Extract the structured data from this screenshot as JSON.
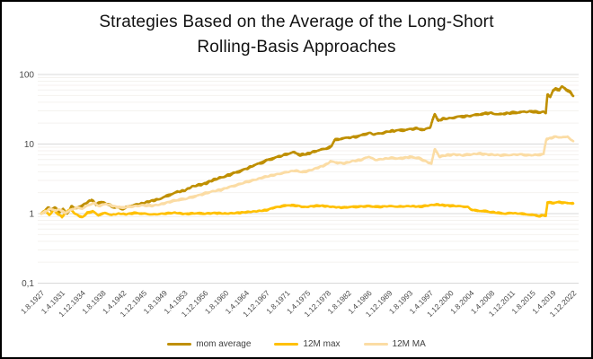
{
  "window": {
    "background": "#FFFFFF",
    "border_color": "#000000"
  },
  "colors": {
    "major_gridline": "#D9D9D9",
    "minor_gridline": "#F4F2EF",
    "axis_text": "#4A4A4A",
    "title_text": "#111111"
  },
  "chart_data": {
    "type": "line",
    "title_lines": [
      "Strategies Based on the Average of the Long-Short",
      "Rolling-Basis Approaches"
    ],
    "y_axis": {
      "scale": "log",
      "range": [
        0.1,
        100
      ],
      "minor_gridlines": true,
      "ticks": [
        {
          "label": "100",
          "value": 100
        },
        {
          "label": "10",
          "value": 10
        },
        {
          "label": "1",
          "value": 1
        },
        {
          "label": "0,1",
          "value": 0.1
        }
      ]
    },
    "x_axis": {
      "range_years": [
        1927.583,
        2022.917
      ],
      "tick_labels": [
        "1.8.1927",
        "1.4.1931",
        "1.12.1934",
        "1.8.1938",
        "1.4.1942",
        "1.12.1945",
        "1.8.1949",
        "1.4.1953",
        "1.12.1956",
        "1.8.1960",
        "1.4.1964",
        "1.12.1967",
        "1.8.1971",
        "1.4.1975",
        "1.12.1978",
        "1.8.1982",
        "1.4.1986",
        "1.12.1989",
        "1.8.1993",
        "1.4.1997",
        "1.12.2000",
        "1.8.2004",
        "1.4.2008",
        "1.12.2011",
        "1.8.2015",
        "1.4.2019",
        "1.12.2022"
      ]
    },
    "legend": {
      "position": "bottom",
      "entries": [
        {
          "label": "mom average",
          "color": "#BF8F00"
        },
        {
          "label": "12M max",
          "color": "#FFC000"
        },
        {
          "label": "12M MA",
          "color": "#FBDCA4"
        }
      ]
    },
    "series": [
      {
        "name": "mom average",
        "color": "#BF8F00",
        "points": [
          [
            1927.58,
            1.0
          ],
          [
            1928.2,
            1.1
          ],
          [
            1928.8,
            1.22
          ],
          [
            1929.4,
            1.12
          ],
          [
            1930.0,
            1.25
          ],
          [
            1930.8,
            1.05
          ],
          [
            1931.5,
            1.15
          ],
          [
            1932.2,
            0.98
          ],
          [
            1933.0,
            1.28
          ],
          [
            1933.8,
            1.18
          ],
          [
            1934.9,
            1.3
          ],
          [
            1935.8,
            1.45
          ],
          [
            1936.6,
            1.58
          ],
          [
            1937.4,
            1.35
          ],
          [
            1938.3,
            1.48
          ],
          [
            1939.2,
            1.4
          ],
          [
            1940.2,
            1.28
          ],
          [
            1941.3,
            1.22
          ],
          [
            1942.3,
            1.18
          ],
          [
            1943.5,
            1.3
          ],
          [
            1944.6,
            1.35
          ],
          [
            1945.9,
            1.42
          ],
          [
            1947.2,
            1.52
          ],
          [
            1948.5,
            1.6
          ],
          [
            1949.6,
            1.72
          ],
          [
            1950.8,
            1.9
          ],
          [
            1952.0,
            2.05
          ],
          [
            1953.3,
            2.15
          ],
          [
            1954.6,
            2.45
          ],
          [
            1956.0,
            2.6
          ],
          [
            1956.9,
            2.7
          ],
          [
            1958.2,
            3.0
          ],
          [
            1959.5,
            3.25
          ],
          [
            1960.6,
            3.45
          ],
          [
            1962.0,
            3.8
          ],
          [
            1963.2,
            4.1
          ],
          [
            1964.3,
            4.4
          ],
          [
            1965.6,
            4.9
          ],
          [
            1966.8,
            5.3
          ],
          [
            1967.9,
            5.8
          ],
          [
            1969.0,
            6.2
          ],
          [
            1970.2,
            6.6
          ],
          [
            1971.6,
            7.2
          ],
          [
            1972.8,
            7.6
          ],
          [
            1974.0,
            7.0
          ],
          [
            1975.3,
            7.2
          ],
          [
            1976.6,
            7.9
          ],
          [
            1977.8,
            8.3
          ],
          [
            1978.9,
            8.8
          ],
          [
            1979.6,
            9.3
          ],
          [
            1980.2,
            11.5
          ],
          [
            1981.4,
            12.0
          ],
          [
            1982.6,
            12.3
          ],
          [
            1984.0,
            12.8
          ],
          [
            1985.2,
            13.5
          ],
          [
            1986.3,
            14.5
          ],
          [
            1987.2,
            13.8
          ],
          [
            1988.4,
            14.2
          ],
          [
            1989.9,
            15.2
          ],
          [
            1991.2,
            15.6
          ],
          [
            1992.4,
            15.9
          ],
          [
            1993.6,
            16.3
          ],
          [
            1995.0,
            16.8
          ],
          [
            1996.2,
            16.0
          ],
          [
            1997.3,
            17.5
          ],
          [
            1998.1,
            27.5
          ],
          [
            1998.7,
            21.5
          ],
          [
            1999.5,
            23.0
          ],
          [
            2000.9,
            23.5
          ],
          [
            2002.0,
            24.5
          ],
          [
            2003.2,
            25.0
          ],
          [
            2004.6,
            25.5
          ],
          [
            2005.8,
            26.5
          ],
          [
            2007.0,
            27.5
          ],
          [
            2008.3,
            28.0
          ],
          [
            2009.4,
            26.5
          ],
          [
            2010.6,
            27.5
          ],
          [
            2011.9,
            28.0
          ],
          [
            2013.0,
            28.5
          ],
          [
            2014.2,
            29.0
          ],
          [
            2015.6,
            29.5
          ],
          [
            2016.6,
            28.5
          ],
          [
            2017.6,
            29.0
          ],
          [
            2018.0,
            28.0
          ],
          [
            2018.3,
            52.0
          ],
          [
            2018.8,
            48.0
          ],
          [
            2019.3,
            58.0
          ],
          [
            2019.8,
            63.0
          ],
          [
            2020.4,
            60.0
          ],
          [
            2020.9,
            67.0
          ],
          [
            2021.4,
            64.0
          ],
          [
            2021.9,
            58.0
          ],
          [
            2022.4,
            56.0
          ],
          [
            2022.92,
            49.0
          ]
        ]
      },
      {
        "name": "12M max",
        "color": "#FFC000",
        "points": [
          [
            1927.58,
            1.0
          ],
          [
            1928.3,
            1.1
          ],
          [
            1929.0,
            0.95
          ],
          [
            1929.8,
            1.12
          ],
          [
            1930.5,
            1.0
          ],
          [
            1931.3,
            0.9
          ],
          [
            1932.0,
            1.05
          ],
          [
            1932.8,
            1.15
          ],
          [
            1933.6,
            1.0
          ],
          [
            1934.9,
            0.88
          ],
          [
            1935.8,
            1.02
          ],
          [
            1936.8,
            1.08
          ],
          [
            1937.8,
            0.95
          ],
          [
            1939.0,
            1.02
          ],
          [
            1940.2,
            0.96
          ],
          [
            1941.5,
            1.0
          ],
          [
            1942.8,
            0.98
          ],
          [
            1944.2,
            1.02
          ],
          [
            1945.9,
            1.0
          ],
          [
            1947.5,
            0.97
          ],
          [
            1949.6,
            1.0
          ],
          [
            1951.5,
            1.03
          ],
          [
            1953.3,
            0.99
          ],
          [
            1955.2,
            1.01
          ],
          [
            1956.9,
            1.0
          ],
          [
            1958.8,
            1.02
          ],
          [
            1960.6,
            1.0
          ],
          [
            1962.5,
            1.02
          ],
          [
            1964.3,
            1.05
          ],
          [
            1966.1,
            1.08
          ],
          [
            1967.9,
            1.12
          ],
          [
            1969.3,
            1.22
          ],
          [
            1970.8,
            1.28
          ],
          [
            1972.0,
            1.32
          ],
          [
            1973.4,
            1.3
          ],
          [
            1974.8,
            1.24
          ],
          [
            1976.2,
            1.28
          ],
          [
            1977.6,
            1.3
          ],
          [
            1978.9,
            1.27
          ],
          [
            1980.3,
            1.24
          ],
          [
            1981.6,
            1.22
          ],
          [
            1982.6,
            1.24
          ],
          [
            1984.3,
            1.26
          ],
          [
            1986.3,
            1.28
          ],
          [
            1988.0,
            1.25
          ],
          [
            1989.9,
            1.28
          ],
          [
            1991.6,
            1.26
          ],
          [
            1993.6,
            1.28
          ],
          [
            1995.4,
            1.26
          ],
          [
            1997.3,
            1.32
          ],
          [
            1998.3,
            1.35
          ],
          [
            1999.6,
            1.32
          ],
          [
            2000.9,
            1.3
          ],
          [
            2002.3,
            1.28
          ],
          [
            2004.0,
            1.25
          ],
          [
            2004.8,
            1.12
          ],
          [
            2006.0,
            1.1
          ],
          [
            2007.2,
            1.08
          ],
          [
            2008.3,
            1.05
          ],
          [
            2009.6,
            1.02
          ],
          [
            2010.8,
            1.0
          ],
          [
            2011.9,
            1.02
          ],
          [
            2013.2,
            1.0
          ],
          [
            2014.4,
            0.98
          ],
          [
            2015.6,
            0.96
          ],
          [
            2016.8,
            0.92
          ],
          [
            2017.6,
            0.95
          ],
          [
            2018.0,
            0.93
          ],
          [
            2018.3,
            1.45
          ],
          [
            2019.3,
            1.42
          ],
          [
            2020.0,
            1.47
          ],
          [
            2020.9,
            1.44
          ],
          [
            2021.8,
            1.43
          ],
          [
            2022.92,
            1.4
          ]
        ]
      },
      {
        "name": "12M MA",
        "color": "#FBDCA4",
        "points": [
          [
            1927.58,
            1.0
          ],
          [
            1928.4,
            1.08
          ],
          [
            1929.2,
            1.18
          ],
          [
            1930.0,
            1.1
          ],
          [
            1930.9,
            1.15
          ],
          [
            1931.8,
            1.02
          ],
          [
            1932.8,
            1.12
          ],
          [
            1933.8,
            1.22
          ],
          [
            1934.9,
            1.18
          ],
          [
            1936.0,
            1.32
          ],
          [
            1937.0,
            1.42
          ],
          [
            1938.0,
            1.28
          ],
          [
            1939.2,
            1.38
          ],
          [
            1940.5,
            1.28
          ],
          [
            1941.8,
            1.22
          ],
          [
            1943.0,
            1.25
          ],
          [
            1944.4,
            1.28
          ],
          [
            1945.9,
            1.32
          ],
          [
            1947.4,
            1.3
          ],
          [
            1948.8,
            1.35
          ],
          [
            1950.2,
            1.45
          ],
          [
            1951.6,
            1.55
          ],
          [
            1953.3,
            1.62
          ],
          [
            1954.8,
            1.75
          ],
          [
            1956.0,
            1.85
          ],
          [
            1956.9,
            1.95
          ],
          [
            1958.4,
            2.1
          ],
          [
            1959.8,
            2.2
          ],
          [
            1961.2,
            2.4
          ],
          [
            1962.8,
            2.6
          ],
          [
            1964.3,
            2.85
          ],
          [
            1965.8,
            3.05
          ],
          [
            1967.2,
            3.3
          ],
          [
            1968.6,
            3.5
          ],
          [
            1970.0,
            3.7
          ],
          [
            1971.6,
            3.95
          ],
          [
            1973.0,
            4.15
          ],
          [
            1974.4,
            3.95
          ],
          [
            1975.8,
            4.2
          ],
          [
            1977.2,
            4.6
          ],
          [
            1978.5,
            5.0
          ],
          [
            1979.4,
            5.6
          ],
          [
            1980.6,
            5.4
          ],
          [
            1982.0,
            5.3
          ],
          [
            1983.4,
            5.7
          ],
          [
            1984.8,
            5.9
          ],
          [
            1986.3,
            6.6
          ],
          [
            1987.4,
            5.9
          ],
          [
            1988.8,
            6.1
          ],
          [
            1990.2,
            6.3
          ],
          [
            1991.8,
            6.2
          ],
          [
            1993.6,
            6.5
          ],
          [
            1995.2,
            6.3
          ],
          [
            1996.6,
            5.6
          ],
          [
            1997.5,
            5.2
          ],
          [
            1998.1,
            8.6
          ],
          [
            1998.9,
            6.6
          ],
          [
            2000.2,
            6.9
          ],
          [
            2001.6,
            7.1
          ],
          [
            2003.0,
            6.9
          ],
          [
            2004.6,
            7.1
          ],
          [
            2006.0,
            7.3
          ],
          [
            2007.4,
            7.1
          ],
          [
            2008.8,
            7.0
          ],
          [
            2010.2,
            6.9
          ],
          [
            2011.9,
            7.0
          ],
          [
            2013.4,
            7.1
          ],
          [
            2015.0,
            6.9
          ],
          [
            2016.4,
            7.0
          ],
          [
            2017.6,
            7.2
          ],
          [
            2018.1,
            11.8
          ],
          [
            2018.9,
            12.2
          ],
          [
            2019.8,
            12.8
          ],
          [
            2020.9,
            12.4
          ],
          [
            2021.9,
            12.9
          ],
          [
            2022.5,
            11.4
          ],
          [
            2022.92,
            11.0
          ]
        ]
      }
    ]
  }
}
